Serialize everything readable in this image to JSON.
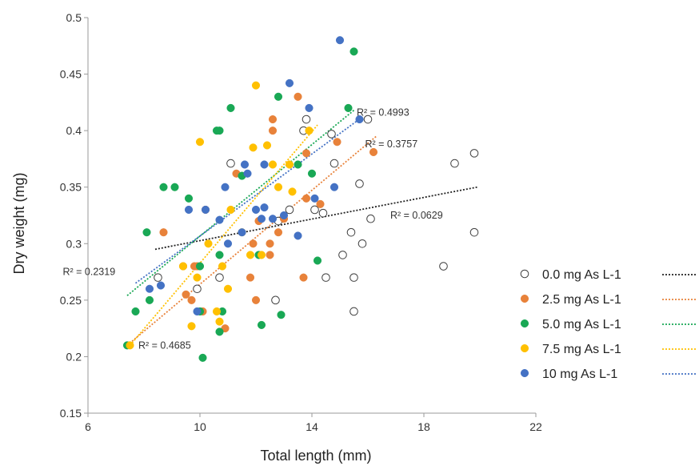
{
  "chart_data": {
    "type": "scatter",
    "xlabel": "Total length  (mm)",
    "ylabel": "Dry weight  (mg)",
    "xlim": [
      6,
      22
    ],
    "ylim": [
      0.15,
      0.5
    ],
    "x_ticks": [
      "6",
      "10",
      "14",
      "18",
      "22"
    ],
    "y_ticks": [
      "0.15",
      "0.2",
      "0.25",
      "0.3",
      "0.35",
      "0.4",
      "0.45",
      "0.5"
    ],
    "grid": false,
    "legend_position": "right",
    "series": [
      {
        "name": "0.0 mg As L-1",
        "color": "#404040",
        "marker": "open-circle",
        "trendline": {
          "x": [
            8.4,
            19.9
          ],
          "y": [
            0.295,
            0.35
          ],
          "r2_label": "R² = 0.0629",
          "label_x": 16.8,
          "label_y": 0.325
        },
        "points": [
          [
            8.5,
            0.27
          ],
          [
            9.9,
            0.26
          ],
          [
            10.7,
            0.27
          ],
          [
            11.1,
            0.371
          ],
          [
            12.7,
            0.25
          ],
          [
            12.8,
            0.32
          ],
          [
            13.2,
            0.33
          ],
          [
            13.7,
            0.4
          ],
          [
            13.8,
            0.41
          ],
          [
            14.1,
            0.33
          ],
          [
            14.4,
            0.327
          ],
          [
            14.5,
            0.27
          ],
          [
            14.7,
            0.397
          ],
          [
            14.8,
            0.371
          ],
          [
            15.1,
            0.29
          ],
          [
            15.4,
            0.31
          ],
          [
            15.5,
            0.24
          ],
          [
            15.5,
            0.27
          ],
          [
            15.7,
            0.353
          ],
          [
            15.8,
            0.3
          ],
          [
            16.0,
            0.41
          ],
          [
            16.1,
            0.322
          ],
          [
            18.7,
            0.28
          ],
          [
            19.1,
            0.371
          ],
          [
            19.8,
            0.38
          ],
          [
            19.8,
            0.31
          ]
        ]
      },
      {
        "name": "2.5 mg As L-1",
        "color": "#E8823A",
        "marker": "filled-circle",
        "trendline": {
          "x": [
            7.4,
            16.3
          ],
          "y": [
            0.21,
            0.395
          ],
          "r2_label": "R² = 0.3757",
          "label_x": 15.9,
          "label_y": 0.388
        },
        "points": [
          [
            8.7,
            0.31
          ],
          [
            9.4,
            0.28
          ],
          [
            9.5,
            0.255
          ],
          [
            9.7,
            0.25
          ],
          [
            9.8,
            0.28
          ],
          [
            9.9,
            0.28
          ],
          [
            10.1,
            0.24
          ],
          [
            10.2,
            0.33
          ],
          [
            10.9,
            0.225
          ],
          [
            11.3,
            0.362
          ],
          [
            11.8,
            0.27
          ],
          [
            11.9,
            0.3
          ],
          [
            12.0,
            0.25
          ],
          [
            12.1,
            0.32
          ],
          [
            12.5,
            0.29
          ],
          [
            12.5,
            0.3
          ],
          [
            12.6,
            0.41
          ],
          [
            12.6,
            0.4
          ],
          [
            12.8,
            0.31
          ],
          [
            13.0,
            0.322
          ],
          [
            13.5,
            0.43
          ],
          [
            13.7,
            0.27
          ],
          [
            13.8,
            0.38
          ],
          [
            13.8,
            0.34
          ],
          [
            14.3,
            0.335
          ],
          [
            14.9,
            0.39
          ],
          [
            16.2,
            0.381
          ]
        ]
      },
      {
        "name": "5.0 mg As L-1",
        "color": "#19A855",
        "marker": "filled-circle",
        "trendline": {
          "x": [
            7.4,
            15.5
          ],
          "y": [
            0.254,
            0.418
          ],
          "r2_label": "R² = 0.4993",
          "label_x": 15.6,
          "label_y": 0.416
        },
        "points": [
          [
            7.4,
            0.21
          ],
          [
            7.7,
            0.24
          ],
          [
            8.1,
            0.31
          ],
          [
            8.2,
            0.25
          ],
          [
            8.7,
            0.35
          ],
          [
            9.1,
            0.35
          ],
          [
            9.6,
            0.34
          ],
          [
            10.0,
            0.28
          ],
          [
            10.0,
            0.24
          ],
          [
            10.1,
            0.199
          ],
          [
            10.6,
            0.4
          ],
          [
            10.7,
            0.4
          ],
          [
            10.7,
            0.29
          ],
          [
            10.7,
            0.222
          ],
          [
            10.8,
            0.24
          ],
          [
            11.1,
            0.42
          ],
          [
            11.5,
            0.36
          ],
          [
            12.1,
            0.29
          ],
          [
            12.2,
            0.228
          ],
          [
            12.8,
            0.43
          ],
          [
            12.9,
            0.237
          ],
          [
            13.5,
            0.37
          ],
          [
            14.0,
            0.362
          ],
          [
            14.2,
            0.285
          ],
          [
            15.3,
            0.42
          ],
          [
            15.5,
            0.47
          ]
        ]
      },
      {
        "name": "7.5 mg As L-1",
        "color": "#FFC000",
        "marker": "filled-circle",
        "trendline": {
          "x": [
            7.5,
            14.2
          ],
          "y": [
            0.21,
            0.405
          ],
          "r2_label": "R² = 0.4685",
          "label_x": 7.8,
          "label_y": 0.21
        },
        "points": [
          [
            7.5,
            0.21
          ],
          [
            9.4,
            0.28
          ],
          [
            9.7,
            0.227
          ],
          [
            9.9,
            0.27
          ],
          [
            10.0,
            0.39
          ],
          [
            10.3,
            0.3
          ],
          [
            10.6,
            0.24
          ],
          [
            10.7,
            0.231
          ],
          [
            10.8,
            0.28
          ],
          [
            11.0,
            0.26
          ],
          [
            11.1,
            0.33
          ],
          [
            11.5,
            0.31
          ],
          [
            11.8,
            0.29
          ],
          [
            11.9,
            0.385
          ],
          [
            12.0,
            0.44
          ],
          [
            12.2,
            0.29
          ],
          [
            12.4,
            0.387
          ],
          [
            12.6,
            0.37
          ],
          [
            12.8,
            0.35
          ],
          [
            13.2,
            0.37
          ],
          [
            13.3,
            0.346
          ],
          [
            13.9,
            0.4
          ]
        ]
      },
      {
        "name": "10 mg As L-1",
        "color": "#4472C4",
        "marker": "filled-circle",
        "trendline": {
          "x": [
            7.7,
            15.8
          ],
          "y": [
            0.265,
            0.412
          ],
          "r2_label": "R² = 0.2319",
          "label_x": 5.1,
          "label_y": 0.275
        },
        "points": [
          [
            8.2,
            0.26
          ],
          [
            8.6,
            0.263
          ],
          [
            9.6,
            0.33
          ],
          [
            9.9,
            0.24
          ],
          [
            10.2,
            0.33
          ],
          [
            10.7,
            0.321
          ],
          [
            10.9,
            0.35
          ],
          [
            11.0,
            0.3
          ],
          [
            11.5,
            0.31
          ],
          [
            11.6,
            0.37
          ],
          [
            11.7,
            0.362
          ],
          [
            12.0,
            0.33
          ],
          [
            12.2,
            0.322
          ],
          [
            12.3,
            0.37
          ],
          [
            12.3,
            0.332
          ],
          [
            12.6,
            0.322
          ],
          [
            13.0,
            0.325
          ],
          [
            13.2,
            0.442
          ],
          [
            13.5,
            0.307
          ],
          [
            13.9,
            0.42
          ],
          [
            14.1,
            0.34
          ],
          [
            14.8,
            0.35
          ],
          [
            15.0,
            0.48
          ],
          [
            15.7,
            0.41
          ]
        ]
      }
    ]
  }
}
